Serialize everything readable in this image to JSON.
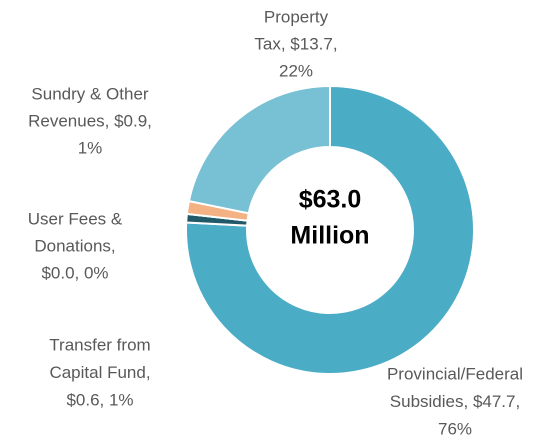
{
  "chart_data": {
    "type": "donut",
    "categories": [
      "Provincial/Federal Subsidies",
      "Transfer from Capital Fund",
      "User Fees & Donations",
      "Sundry & Other Revenues",
      "Property Tax"
    ],
    "values": [
      47.7,
      0.6,
      0.0,
      0.9,
      13.7
    ],
    "value_labels": [
      [
        "Provincial/Federal",
        "Subsidies, $47.7,",
        "76%"
      ],
      [
        "Transfer from",
        "Capital Fund,",
        "$0.6, 1%"
      ],
      [
        "User Fees &",
        "Donations,",
        "$0.0, 0%"
      ],
      [
        "Sundry & Other",
        "Revenues, $0.9,",
        "1%"
      ],
      [
        "Property",
        "Tax, $13.7,",
        "22%"
      ]
    ],
    "colors": [
      "#4bacc6",
      "#215968",
      "#1f4e79",
      "#f4b183",
      "#78c0d4"
    ],
    "total": 63.0,
    "total_label": [
      "$63.0",
      "Million"
    ]
  }
}
